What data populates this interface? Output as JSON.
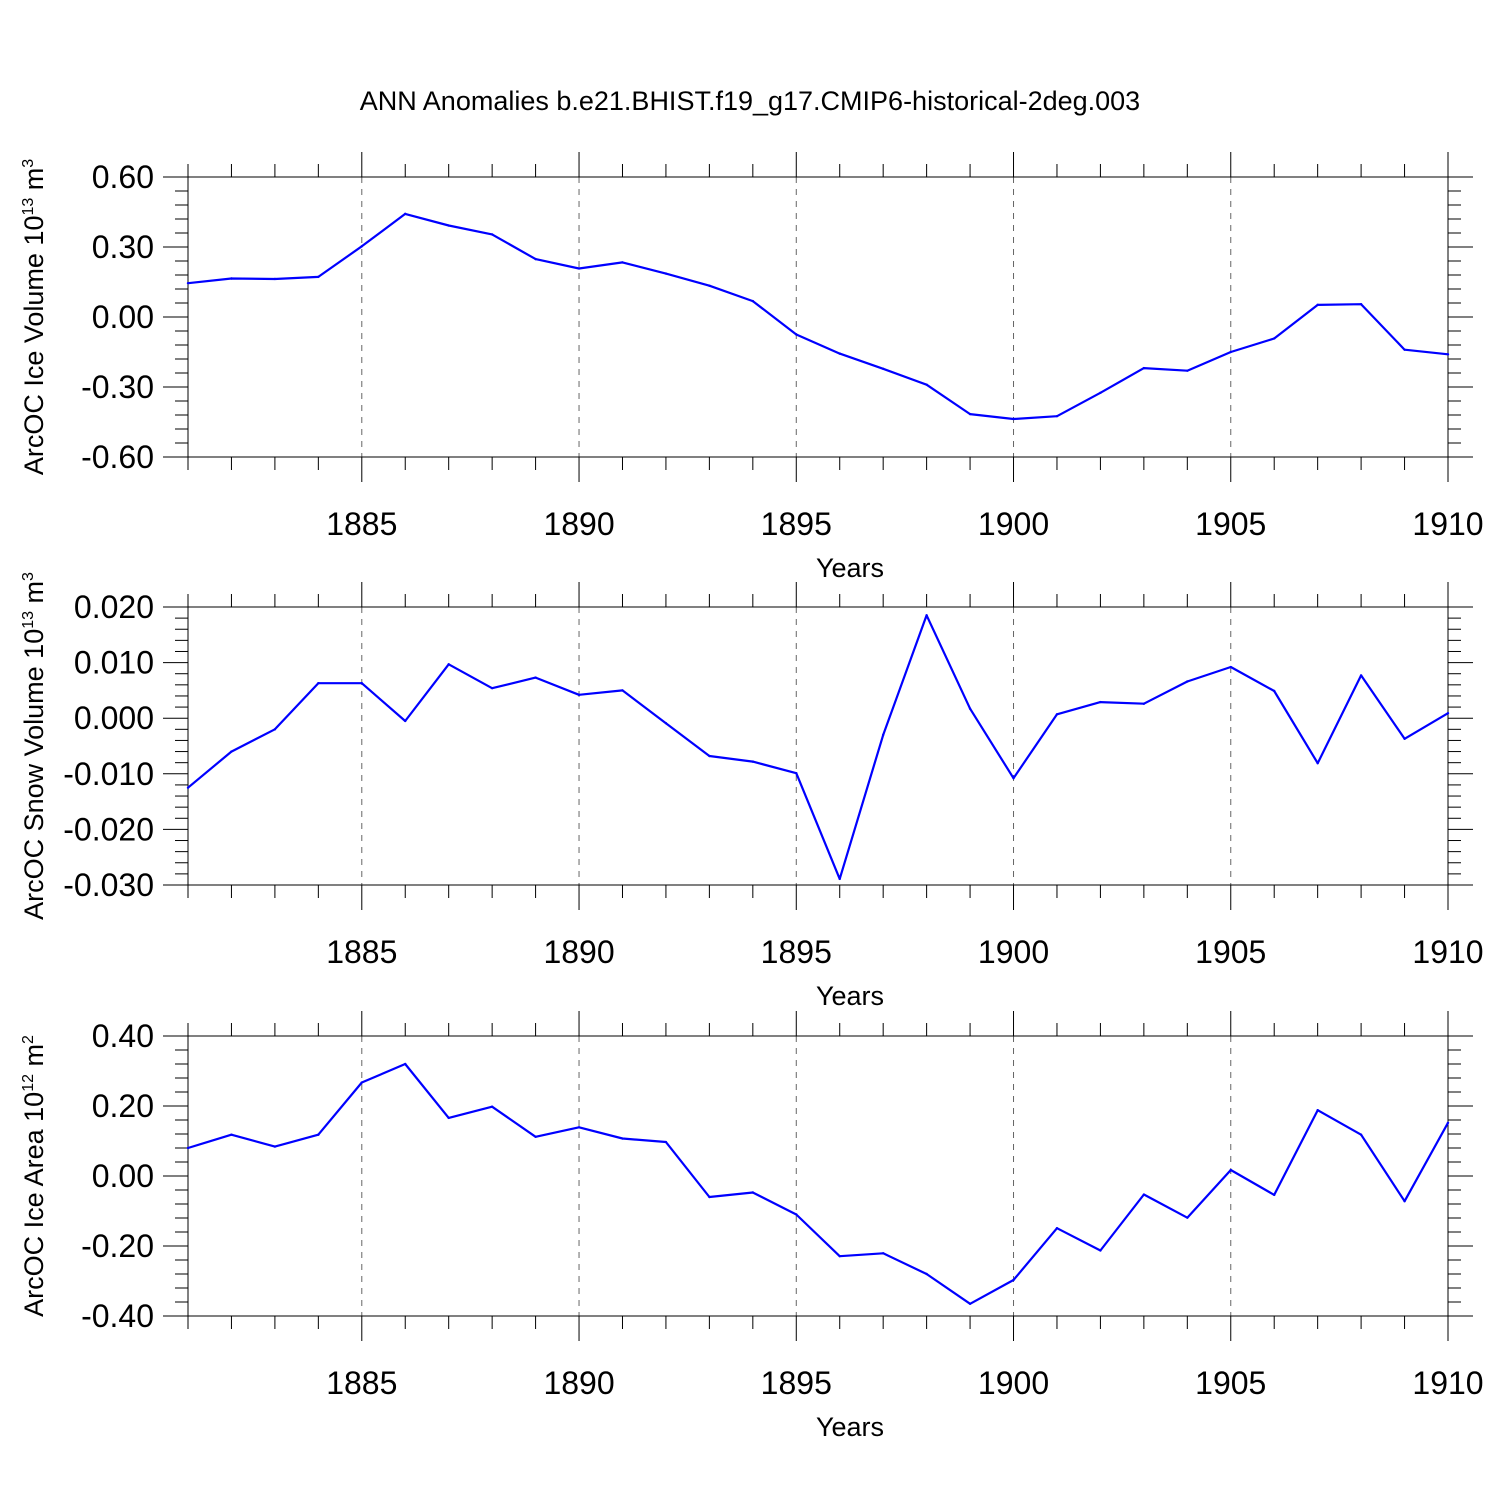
{
  "title": "ANN Anomalies b.e21.BHIST.f19_g17.CMIP6-historical-2deg.003",
  "colors": {
    "series": "#0000ff",
    "axes": "#000000",
    "grid": "#666666"
  },
  "chart_data": [
    {
      "type": "line",
      "xlabel": "Years",
      "ylabel": {
        "text": "ArcOC Ice Volume 10",
        "exponent": "13",
        "unit": " m",
        "unit_exponent": "3"
      },
      "xlim": [
        1881,
        1910
      ],
      "ylim": [
        -0.6,
        0.6
      ],
      "xticks": [
        1885,
        1890,
        1895,
        1900,
        1905,
        1910
      ],
      "xtick_labels": [
        "1885",
        "1890",
        "1895",
        "1900",
        "1905",
        "1910"
      ],
      "yticks": [
        0.6,
        0.3,
        0.0,
        -0.3,
        -0.6
      ],
      "ytick_labels": [
        "0.60",
        "0.30",
        "0.00",
        "-0.30",
        "-0.60"
      ],
      "grid": "x dashed",
      "x": [
        1881,
        1882,
        1883,
        1884,
        1885,
        1886,
        1887,
        1888,
        1889,
        1890,
        1891,
        1892,
        1893,
        1894,
        1895,
        1896,
        1897,
        1898,
        1899,
        1900,
        1901,
        1902,
        1903,
        1904,
        1905,
        1906,
        1907,
        1908,
        1909,
        1910
      ],
      "values": [
        0.145,
        0.165,
        0.163,
        0.172,
        0.303,
        0.442,
        0.392,
        0.354,
        0.248,
        0.208,
        0.234,
        0.186,
        0.134,
        0.068,
        -0.075,
        -0.157,
        -0.222,
        -0.29,
        -0.416,
        -0.437,
        -0.425,
        -0.325,
        -0.219,
        -0.23,
        -0.15,
        -0.092,
        0.052,
        0.055,
        -0.14,
        -0.16
      ]
    },
    {
      "type": "line",
      "xlabel": "Years",
      "ylabel": {
        "text": "ArcOC Snow Volume 10",
        "exponent": "13",
        "unit": " m",
        "unit_exponent": "3"
      },
      "xlim": [
        1881,
        1910
      ],
      "ylim": [
        -0.03,
        0.02
      ],
      "xticks": [
        1885,
        1890,
        1895,
        1900,
        1905,
        1910
      ],
      "xtick_labels": [
        "1885",
        "1890",
        "1895",
        "1900",
        "1905",
        "1910"
      ],
      "yticks": [
        0.02,
        0.01,
        0.0,
        -0.01,
        -0.02,
        -0.03
      ],
      "ytick_labels": [
        "0.020",
        "0.010",
        "0.000",
        "-0.010",
        "-0.020",
        "-0.030"
      ],
      "grid": "x dashed",
      "x": [
        1881,
        1882,
        1883,
        1884,
        1885,
        1886,
        1887,
        1888,
        1889,
        1890,
        1891,
        1892,
        1893,
        1894,
        1895,
        1896,
        1897,
        1898,
        1899,
        1900,
        1901,
        1902,
        1903,
        1904,
        1905,
        1906,
        1907,
        1908,
        1909,
        1910
      ],
      "values": [
        -0.0125,
        -0.006,
        -0.002,
        0.0063,
        0.0063,
        -0.0005,
        0.0097,
        0.0054,
        0.0073,
        0.0042,
        0.005,
        -0.0009,
        -0.0068,
        -0.0078,
        -0.0099,
        -0.0289,
        -0.003,
        0.0185,
        0.0017,
        -0.0108,
        0.0007,
        0.0029,
        0.0026,
        0.0066,
        0.0092,
        0.0049,
        -0.0081,
        0.0077,
        -0.0037,
        0.0009
      ]
    },
    {
      "type": "line",
      "xlabel": "Years",
      "ylabel": {
        "text": "ArcOC Ice Area 10",
        "exponent": "12",
        "unit": " m",
        "unit_exponent": "2"
      },
      "xlim": [
        1881,
        1910
      ],
      "ylim": [
        -0.4,
        0.4
      ],
      "xticks": [
        1885,
        1890,
        1895,
        1900,
        1905,
        1910
      ],
      "xtick_labels": [
        "1885",
        "1890",
        "1895",
        "1900",
        "1905",
        "1910"
      ],
      "yticks": [
        0.4,
        0.2,
        0.0,
        -0.2,
        -0.4
      ],
      "ytick_labels": [
        "0.40",
        "0.20",
        "0.00",
        "-0.20",
        "-0.40"
      ],
      "grid": "x dashed",
      "x": [
        1881,
        1882,
        1883,
        1884,
        1885,
        1886,
        1887,
        1888,
        1889,
        1890,
        1891,
        1892,
        1893,
        1894,
        1895,
        1896,
        1897,
        1898,
        1899,
        1900,
        1901,
        1902,
        1903,
        1904,
        1905,
        1906,
        1907,
        1908,
        1909,
        1910
      ],
      "values": [
        0.08,
        0.118,
        0.084,
        0.118,
        0.267,
        0.32,
        0.166,
        0.198,
        0.112,
        0.139,
        0.107,
        0.097,
        -0.06,
        -0.047,
        -0.11,
        -0.229,
        -0.221,
        -0.28,
        -0.365,
        -0.297,
        -0.149,
        -0.213,
        -0.053,
        -0.119,
        0.017,
        -0.054,
        0.188,
        0.118,
        -0.072,
        0.152
      ]
    }
  ]
}
